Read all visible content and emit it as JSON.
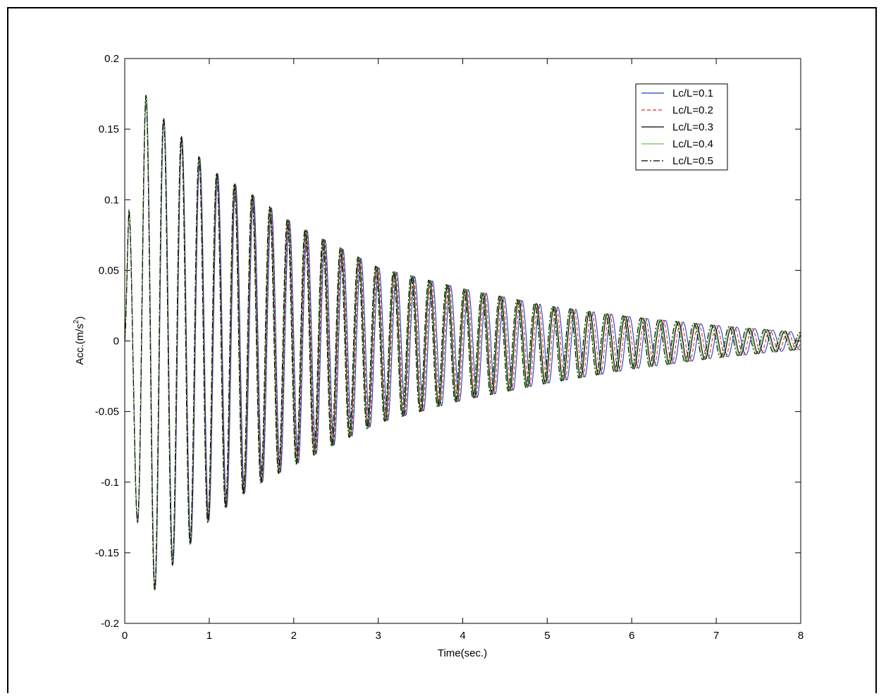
{
  "chart_data": {
    "type": "line",
    "title": "",
    "xlabel": "Time(sec.)",
    "ylabel_prefix": "Acc.(m/s",
    "ylabel_sup": "2",
    "ylabel_suffix": ")",
    "xlim": [
      0,
      8
    ],
    "ylim": [
      -0.2,
      0.2
    ],
    "grid": false,
    "legend_position": "top-right",
    "x_ticks": [
      0,
      1,
      2,
      3,
      4,
      5,
      6,
      7,
      8
    ],
    "x_tick_labels": [
      "0",
      "1",
      "2",
      "3",
      "4",
      "5",
      "6",
      "7",
      "8"
    ],
    "y_ticks": [
      0.2,
      0.15,
      0.1,
      0.05,
      0,
      -0.05,
      -0.1,
      -0.15,
      -0.2
    ],
    "y_tick_labels": [
      "0.2",
      "0.15",
      "0.1",
      "0.05",
      "0",
      "-0.05",
      "-0.1",
      "-0.15",
      "-0.2"
    ],
    "peak_envelope": {
      "t": [
        0.05,
        0.25,
        0.45,
        0.65,
        1.0,
        1.5,
        2.0,
        3.0,
        4.0,
        5.0,
        6.0,
        7.0,
        8.0
      ],
      "max": [
        0.097,
        0.174,
        0.158,
        0.146,
        0.122,
        0.104,
        0.083,
        0.052,
        0.037,
        0.025,
        0.017,
        0.011,
        0.006
      ],
      "min": [
        -0.07,
        -0.188,
        -0.166,
        -0.153,
        -0.127,
        -0.104,
        -0.088,
        -0.058,
        -0.042,
        -0.03,
        -0.02,
        -0.012,
        -0.006
      ]
    },
    "series": [
      {
        "name": "Lc/L=0.1",
        "color": "#1f3fbf",
        "dash": "solid",
        "dominant_frequency_hz": 4.72
      },
      {
        "name": "Lc/L=0.2",
        "color": "#e0282e",
        "dash": "dashed",
        "dominant_frequency_hz": 4.74
      },
      {
        "name": "Lc/L=0.3",
        "color": "#000000",
        "dash": "solid",
        "dominant_frequency_hz": 4.76
      },
      {
        "name": "Lc/L=0.4",
        "color": "#6cc24a",
        "dash": "solid",
        "dominant_frequency_hz": 4.77
      },
      {
        "name": "Lc/L=0.5",
        "color": "#000000",
        "dash": "dashdot",
        "dominant_frequency_hz": 4.78
      }
    ]
  }
}
